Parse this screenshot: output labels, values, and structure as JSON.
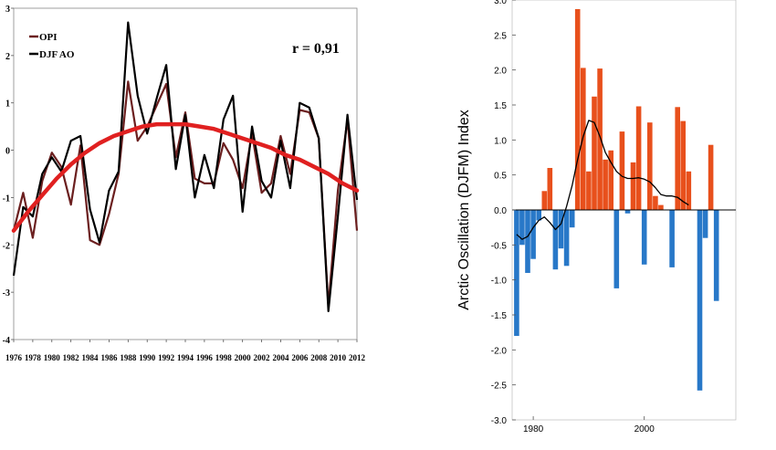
{
  "chart_data": [
    {
      "type": "line",
      "annotation": "r = 0,91",
      "x": [
        1976,
        1977,
        1978,
        1979,
        1980,
        1981,
        1982,
        1983,
        1984,
        1985,
        1986,
        1987,
        1988,
        1989,
        1990,
        1991,
        1992,
        1993,
        1994,
        1995,
        1996,
        1997,
        1998,
        1999,
        2000,
        2001,
        2002,
        2003,
        2004,
        2005,
        2006,
        2007,
        2008,
        2009,
        2010,
        2011,
        2012
      ],
      "x_ticks": [
        1976,
        1978,
        1980,
        1982,
        1984,
        1986,
        1988,
        1990,
        1992,
        1994,
        1996,
        1998,
        2000,
        2002,
        2004,
        2006,
        2008,
        2010,
        2012
      ],
      "ylim": [
        -4,
        3
      ],
      "y_ticks": [
        -4,
        -3,
        -2,
        -1,
        0,
        1,
        2,
        3
      ],
      "series": [
        {
          "name": "OPI",
          "color": "#6b1f1f",
          "values": [
            -1.7,
            -0.9,
            -1.85,
            -0.65,
            -0.05,
            -0.35,
            -1.15,
            0.1,
            -1.9,
            -2.0,
            -1.35,
            -0.5,
            1.45,
            0.2,
            0.5,
            0.95,
            1.4,
            -0.15,
            0.8,
            -0.6,
            -0.7,
            -0.7,
            0.15,
            -0.2,
            -0.8,
            0.35,
            -0.9,
            -0.7,
            0.3,
            -0.5,
            0.85,
            0.8,
            0.25,
            -3.3,
            -0.85,
            0.65,
            -1.7
          ]
        },
        {
          "name": "DJF AO",
          "color": "#000000",
          "values": [
            -2.65,
            -1.2,
            -1.4,
            -0.5,
            -0.15,
            -0.45,
            0.2,
            0.3,
            -1.25,
            -1.95,
            -0.85,
            -0.45,
            2.7,
            1.15,
            0.35,
            1.1,
            1.8,
            -0.4,
            0.75,
            -1.0,
            -0.1,
            -0.8,
            0.65,
            1.15,
            -1.3,
            0.5,
            -0.65,
            -1.0,
            0.2,
            -0.8,
            1.0,
            0.9,
            0.25,
            -3.4,
            -1.4,
            0.75,
            -1.05
          ]
        }
      ],
      "trend": {
        "color": "#e02020",
        "values": [
          -1.7,
          -1.3,
          -0.95,
          -0.6,
          -0.3,
          -0.05,
          0.15,
          0.3,
          0.4,
          0.5,
          0.55,
          0.55,
          0.55,
          0.5,
          0.45,
          0.35,
          0.25,
          0.15,
          0.05,
          -0.1,
          -0.2,
          -0.35,
          -0.5,
          -0.7,
          -0.85
        ]
      }
    },
    {
      "type": "bar",
      "ylabel": "Arctic Oscillation (DJFM) Index",
      "ylim": [
        -3.0,
        3.0
      ],
      "y_ticks": [
        "-3.0",
        "-2.5",
        "-2.0",
        "-1.5",
        "-1.0",
        "-0.5",
        "0.0",
        "0.5",
        "1.0",
        "1.5",
        "2.0",
        "2.5",
        "3.0"
      ],
      "x_ticks": [
        1980,
        2000
      ],
      "positive_color": "#e8501c",
      "negative_color": "#2878c8",
      "years": [
        1977,
        1978,
        1979,
        1980,
        1981,
        1982,
        1983,
        1984,
        1985,
        1986,
        1987,
        1988,
        1989,
        1990,
        1991,
        1992,
        1993,
        1994,
        1995,
        1996,
        1997,
        1998,
        1999,
        2000,
        2001,
        2002,
        2003,
        2004,
        2005,
        2006,
        2007,
        2008,
        2009,
        2010,
        2011,
        2012,
        2013
      ],
      "values": [
        -1.8,
        -0.5,
        -0.9,
        -0.7,
        -0.15,
        0.27,
        0.6,
        -0.85,
        -0.55,
        -0.8,
        -0.25,
        2.87,
        2.03,
        0.55,
        1.62,
        2.02,
        0.72,
        0.85,
        -1.12,
        1.12,
        -0.05,
        0.68,
        1.48,
        -0.78,
        1.25,
        0.2,
        0.07,
        0.0,
        -0.82,
        1.47,
        1.27,
        0.55,
        0.0,
        -2.58,
        -0.4,
        0.93,
        -1.3
      ],
      "smooth": {
        "color": "#000000",
        "x": [
          1977,
          1978,
          1979,
          1980,
          1981,
          1982,
          1983,
          1984,
          1985,
          1986,
          1987,
          1988,
          1989,
          1990,
          1991,
          1992,
          1993,
          1994,
          1995,
          1996,
          1997,
          1998,
          1999,
          2000,
          2001,
          2002,
          2003,
          2004,
          2005,
          2006,
          2007,
          2008
        ],
        "values": [
          -0.35,
          -0.42,
          -0.38,
          -0.25,
          -0.15,
          -0.1,
          -0.18,
          -0.28,
          -0.2,
          0.05,
          0.35,
          0.72,
          1.05,
          1.28,
          1.25,
          1.05,
          0.82,
          0.68,
          0.55,
          0.48,
          0.45,
          0.45,
          0.46,
          0.44,
          0.4,
          0.32,
          0.22,
          0.2,
          0.2,
          0.18,
          0.12,
          0.07
        ]
      }
    }
  ]
}
